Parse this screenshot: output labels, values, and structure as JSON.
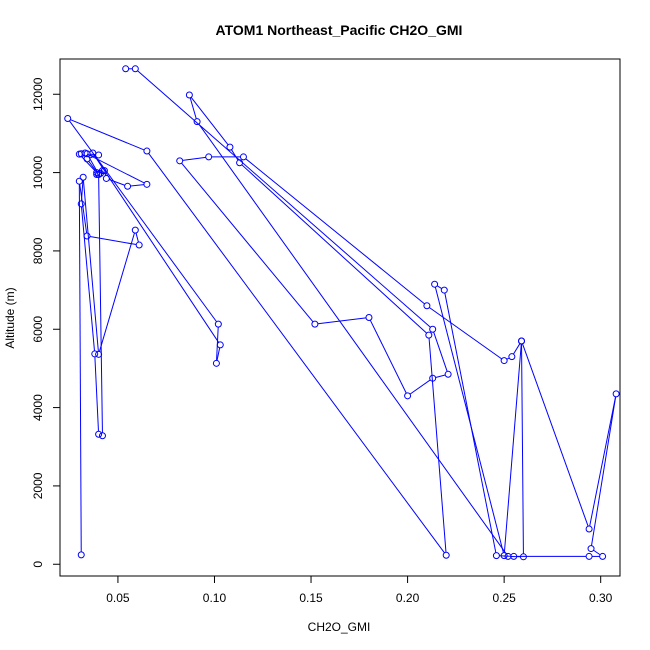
{
  "chart_data": {
    "type": "line",
    "title": "ATOM1 Northeast_Pacific CH2O_GMI",
    "xlabel": "CH2O_GMI",
    "ylabel": "Altitude (m)",
    "xlim": [
      0.02,
      0.31
    ],
    "ylim": [
      -300,
      12900
    ],
    "x_ticks": [
      "0.05",
      "0.10",
      "0.15",
      "0.20",
      "0.25",
      "0.30"
    ],
    "x_tick_values": [
      0.05,
      0.1,
      0.15,
      0.2,
      0.25,
      0.3
    ],
    "y_ticks": [
      "0",
      "2000",
      "4000",
      "6000",
      "8000",
      "10000",
      "12000"
    ],
    "y_tick_values": [
      0,
      2000,
      4000,
      6000,
      8000,
      10000,
      12000
    ],
    "grid": false,
    "series_color": "#0000ff",
    "series": [
      {
        "x": [
          0.054,
          0.059,
          0.213,
          0.221,
          0.213,
          0.2,
          0.18,
          0.152,
          0.082,
          0.097,
          0.115,
          0.21,
          0.25,
          0.254,
          0.259,
          0.294,
          0.308,
          0.295,
          0.301,
          0.294,
          0.255,
          0.246,
          0.219,
          0.214,
          0.25,
          0.259,
          0.26,
          0.252,
          0.091,
          0.087,
          0.108,
          0.113,
          0.211,
          0.22,
          0.065,
          0.024,
          0.102,
          0.101,
          0.103,
          0.037,
          0.043,
          0.044,
          0.055,
          0.065,
          0.033,
          0.031,
          0.03,
          0.039,
          0.041,
          0.042,
          0.039,
          0.04,
          0.034,
          0.04,
          0.034,
          0.04,
          0.042,
          0.04,
          0.038,
          0.031,
          0.032,
          0.04,
          0.059,
          0.061,
          0.034,
          0.03,
          0.031
        ],
        "y": [
          12650,
          12650,
          6000,
          4850,
          4750,
          4300,
          6300,
          6130,
          10300,
          10400,
          10400,
          6600,
          5200,
          5300,
          5700,
          900,
          4350,
          400,
          200,
          200,
          200,
          220,
          7000,
          7150,
          220,
          5700,
          190,
          200,
          11300,
          11980,
          10650,
          10250,
          5850,
          230,
          10550,
          11380,
          6130,
          5130,
          5600,
          10500,
          10050,
          9850,
          9650,
          9700,
          10500,
          10480,
          10470,
          10000,
          9980,
          10050,
          9950,
          9960,
          10480,
          10450,
          10350,
          9950,
          3280,
          3320,
          5370,
          9200,
          9880,
          5360,
          8530,
          8150,
          8380,
          9780,
          240
        ]
      }
    ]
  }
}
